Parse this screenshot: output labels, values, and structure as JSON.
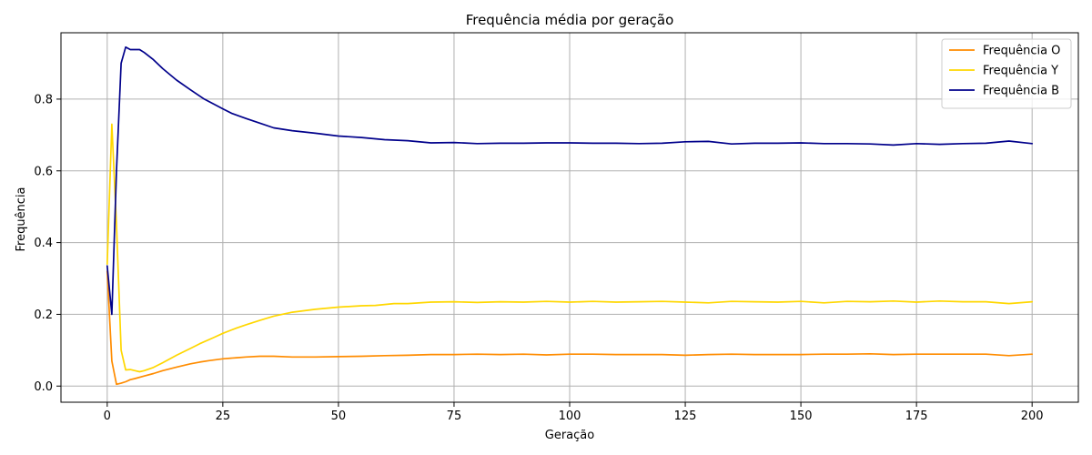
{
  "chart_data": {
    "type": "line",
    "title": "Frequência média por geração",
    "xlabel": "Geração",
    "ylabel": "Frequência",
    "xlim": [
      -10,
      210
    ],
    "ylim": [
      -0.045,
      0.985
    ],
    "xticks": [
      0,
      25,
      50,
      75,
      100,
      125,
      150,
      175,
      200
    ],
    "xtick_labels": [
      "0",
      "25",
      "50",
      "75",
      "100",
      "125",
      "150",
      "175",
      "200"
    ],
    "yticks": [
      0.0,
      0.2,
      0.4,
      0.6,
      0.8
    ],
    "ytick_labels": [
      "0.0",
      "0.2",
      "0.4",
      "0.6",
      "0.8"
    ],
    "grid": true,
    "legend_position": "top-right",
    "series": [
      {
        "name": "Frequência O",
        "color": "#ff8c00",
        "x": [
          0,
          1,
          2,
          3,
          4,
          5,
          6,
          8,
          10,
          12,
          15,
          18,
          20,
          22,
          25,
          28,
          30,
          33,
          36,
          40,
          45,
          50,
          55,
          60,
          65,
          70,
          75,
          80,
          85,
          90,
          95,
          100,
          105,
          110,
          115,
          120,
          125,
          130,
          135,
          140,
          145,
          150,
          155,
          160,
          165,
          170,
          175,
          180,
          185,
          190,
          195,
          200
        ],
        "y": [
          0.32,
          0.07,
          0.005,
          0.008,
          0.012,
          0.018,
          0.021,
          0.028,
          0.035,
          0.043,
          0.053,
          0.062,
          0.067,
          0.071,
          0.076,
          0.079,
          0.081,
          0.083,
          0.083,
          0.081,
          0.081,
          0.082,
          0.083,
          0.085,
          0.086,
          0.088,
          0.088,
          0.089,
          0.088,
          0.089,
          0.087,
          0.089,
          0.089,
          0.088,
          0.088,
          0.088,
          0.086,
          0.088,
          0.089,
          0.088,
          0.088,
          0.088,
          0.089,
          0.089,
          0.09,
          0.088,
          0.089,
          0.089,
          0.089,
          0.089,
          0.085,
          0.089
        ]
      },
      {
        "name": "Frequência Y",
        "color": "#ffd700",
        "x": [
          0,
          1,
          2,
          3,
          4,
          5,
          6,
          7,
          8,
          10,
          12,
          15,
          18,
          20,
          23,
          25,
          28,
          30,
          33,
          36,
          40,
          45,
          50,
          55,
          58,
          62,
          65,
          70,
          75,
          80,
          85,
          90,
          95,
          100,
          105,
          110,
          115,
          120,
          125,
          130,
          135,
          140,
          145,
          150,
          155,
          160,
          165,
          170,
          175,
          180,
          185,
          190,
          195,
          200
        ],
        "y": [
          0.34,
          0.73,
          0.45,
          0.1,
          0.045,
          0.046,
          0.043,
          0.04,
          0.043,
          0.052,
          0.065,
          0.086,
          0.105,
          0.118,
          0.135,
          0.147,
          0.162,
          0.171,
          0.183,
          0.195,
          0.206,
          0.214,
          0.22,
          0.224,
          0.225,
          0.23,
          0.23,
          0.234,
          0.235,
          0.233,
          0.235,
          0.234,
          0.236,
          0.234,
          0.236,
          0.234,
          0.235,
          0.236,
          0.234,
          0.232,
          0.236,
          0.235,
          0.234,
          0.236,
          0.232,
          0.236,
          0.235,
          0.237,
          0.234,
          0.237,
          0.235,
          0.235,
          0.23,
          0.235
        ]
      },
      {
        "name": "Frequência B",
        "color": "#00008b",
        "x": [
          0,
          1,
          2,
          3,
          4,
          5,
          6,
          7,
          8,
          10,
          12,
          15,
          18,
          21,
          25,
          27,
          30,
          33,
          36,
          40,
          45,
          50,
          55,
          60,
          65,
          70,
          75,
          80,
          85,
          90,
          95,
          100,
          105,
          110,
          115,
          120,
          125,
          130,
          135,
          140,
          145,
          150,
          155,
          160,
          165,
          170,
          175,
          180,
          185,
          190,
          195,
          200
        ],
        "y": [
          0.335,
          0.2,
          0.6,
          0.9,
          0.945,
          0.938,
          0.938,
          0.938,
          0.93,
          0.91,
          0.885,
          0.853,
          0.826,
          0.8,
          0.773,
          0.76,
          0.746,
          0.733,
          0.72,
          0.712,
          0.705,
          0.697,
          0.693,
          0.687,
          0.684,
          0.678,
          0.679,
          0.676,
          0.677,
          0.677,
          0.678,
          0.678,
          0.677,
          0.677,
          0.676,
          0.677,
          0.681,
          0.682,
          0.675,
          0.677,
          0.677,
          0.678,
          0.676,
          0.676,
          0.675,
          0.672,
          0.676,
          0.674,
          0.676,
          0.677,
          0.683,
          0.676
        ]
      }
    ]
  }
}
